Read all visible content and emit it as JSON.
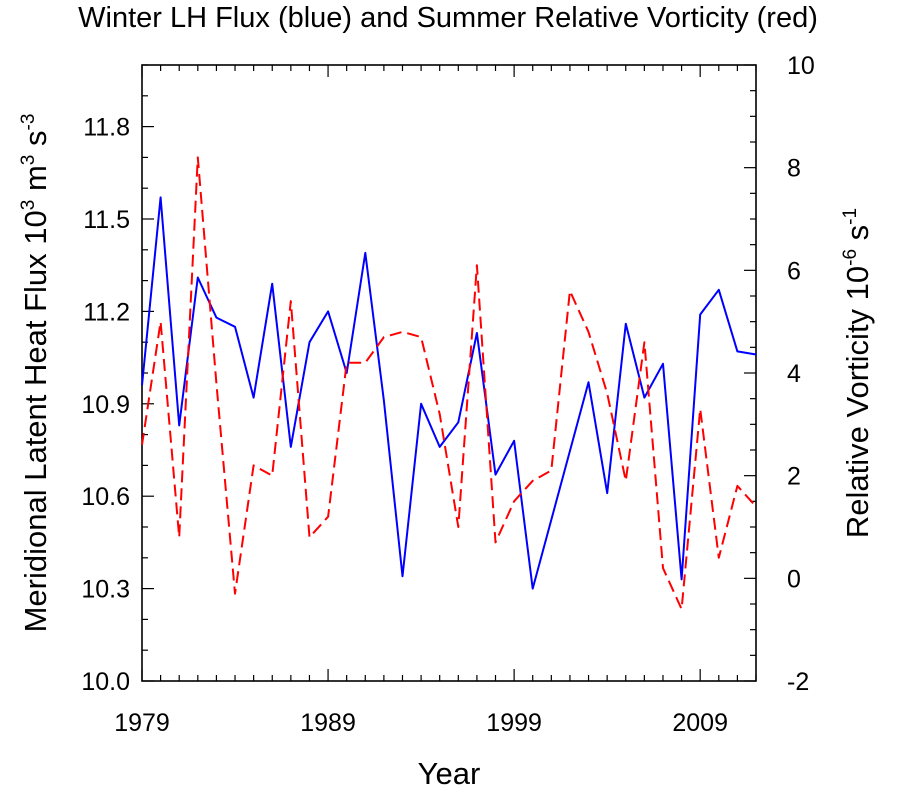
{
  "chart_data": {
    "type": "line",
    "title": "Winter LH Flux (blue) and Summer Relative Vorticity (red)",
    "xlabel": "Year",
    "ylabel_left": {
      "text": "Meridional Latent Heat Flux 10",
      "sup1": "3",
      "mid1": " m",
      "sup2": "3",
      "mid2": " s",
      "sup3": "-3"
    },
    "ylabel_right": {
      "text": "Relative Vorticity 10",
      "sup1": "-6",
      "mid1": " s",
      "sup2": "-1"
    },
    "xlim": [
      1979,
      2012
    ],
    "ylim_left": [
      10.0,
      12.0
    ],
    "ylim_right": [
      -2,
      10
    ],
    "x_ticks": [
      1979,
      1989,
      1999,
      2009
    ],
    "y_ticks_left": [
      "10.0",
      "10.3",
      "10.6",
      "10.9",
      "11.2",
      "11.5",
      "11.8"
    ],
    "y_ticks_right": [
      "-2",
      "0",
      "2",
      "4",
      "6",
      "8",
      "10"
    ],
    "years": [
      1979,
      1980,
      1981,
      1982,
      1983,
      1984,
      1985,
      1986,
      1987,
      1988,
      1989,
      1990,
      1991,
      1992,
      1993,
      1994,
      1995,
      1996,
      1997,
      1998,
      1999,
      2000,
      2003,
      2004,
      2005,
      2006,
      2007,
      2008,
      2009,
      2010,
      2011,
      2012
    ],
    "series": [
      {
        "color": "#0000ff",
        "axis": "left",
        "dashed": false,
        "x": [
          1979,
          1980,
          1981,
          1982,
          1983,
          1984,
          1985,
          1986,
          1987,
          1988,
          1989,
          1990,
          1991,
          1992,
          1993,
          1994,
          1995,
          1996,
          1997,
          1998,
          1999,
          2000,
          2003,
          2004,
          2005,
          2006,
          2007,
          2008,
          2009,
          2010,
          2011,
          2012
        ],
        "values": [
          10.96,
          11.57,
          10.83,
          11.31,
          11.18,
          11.15,
          10.92,
          11.29,
          10.76,
          11.1,
          11.2,
          11.0,
          11.39,
          10.91,
          10.34,
          10.9,
          10.76,
          10.84,
          11.13,
          10.67,
          10.78,
          10.3,
          10.97,
          10.61,
          11.16,
          10.92,
          11.03,
          10.33,
          11.19,
          11.27,
          11.07,
          11.06
        ]
      },
      {
        "color": "#ff0000",
        "axis": "right",
        "dashed": true,
        "x": [
          1979,
          1980,
          1981,
          1982,
          1983,
          1984,
          1985,
          1986,
          1987,
          1988,
          1989,
          1990,
          1991,
          1992,
          1993,
          1994,
          1995,
          1996,
          1997,
          1998,
          1999,
          2000,
          2001,
          2002,
          2003,
          2004,
          2005,
          2006,
          2007,
          2008,
          2009,
          2010,
          2011,
          2012
        ],
        "values": [
          2.6,
          5.0,
          0.8,
          8.2,
          3.8,
          -0.3,
          2.2,
          2.0,
          5.4,
          0.8,
          1.2,
          4.2,
          4.2,
          4.7,
          4.8,
          4.7,
          3.2,
          1.0,
          6.1,
          0.7,
          1.5,
          1.9,
          2.1,
          5.6,
          4.8,
          3.6,
          1.9,
          4.6,
          0.2,
          -0.6,
          3.3,
          0.4,
          1.8,
          1.4
        ]
      }
    ],
    "grid": false,
    "legend": "none"
  }
}
